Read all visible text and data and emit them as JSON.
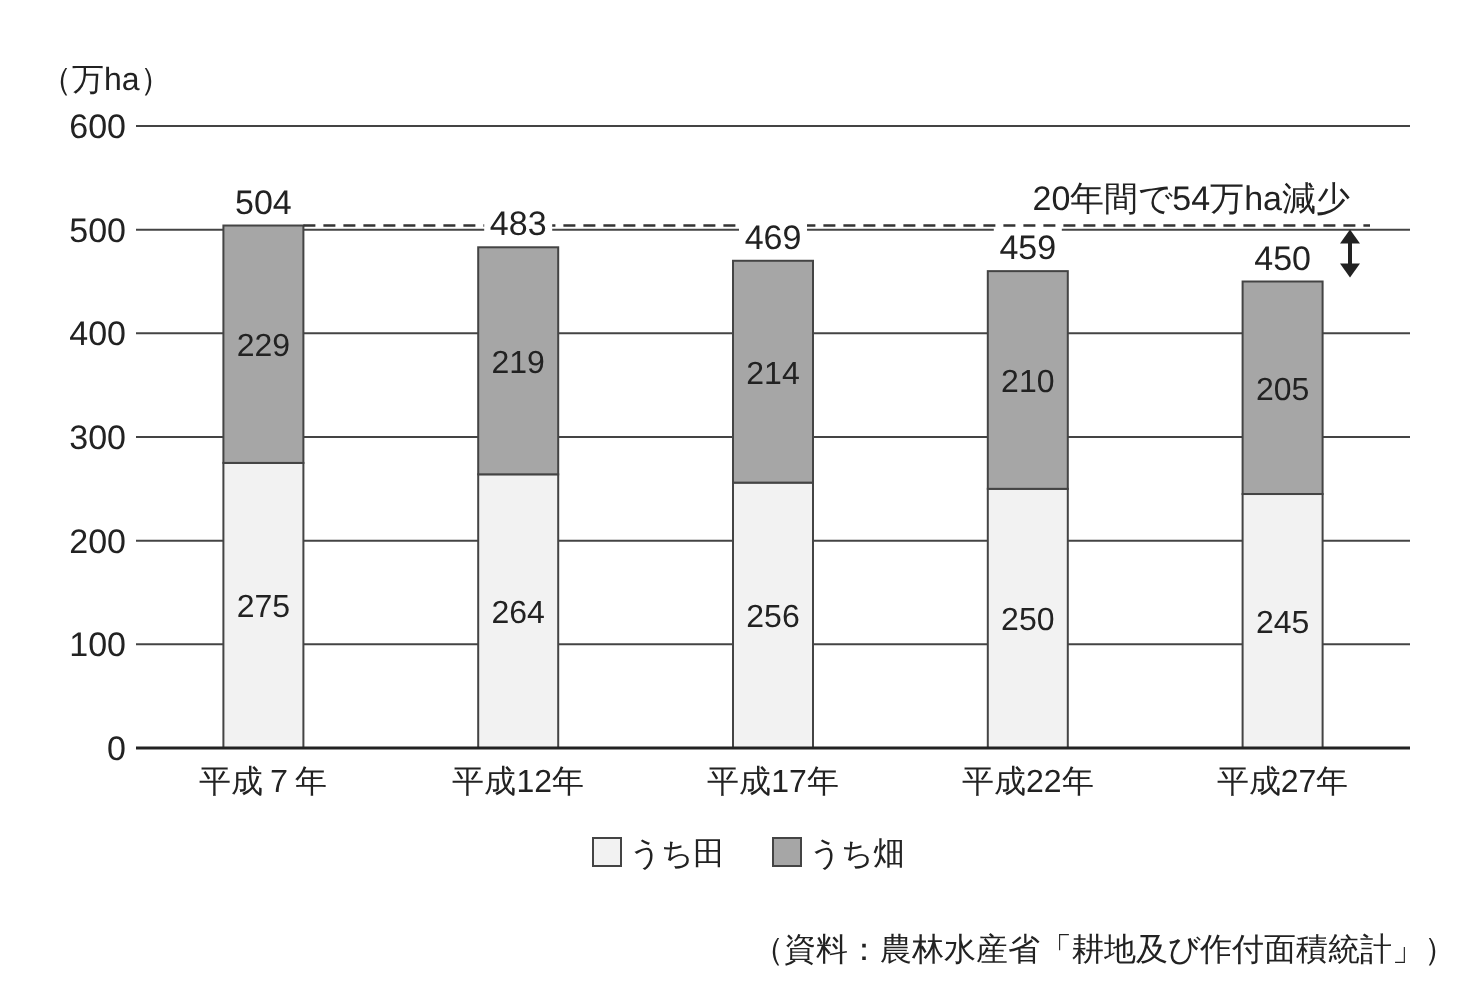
{
  "chart_data": {
    "type": "bar",
    "stacked": true,
    "ylabel": "（万ha）",
    "categories": [
      "平成７年",
      "平成12年",
      "平成17年",
      "平成22年",
      "平成27年"
    ],
    "series": [
      {
        "name": "うち田",
        "color": "#f2f2f2",
        "values": [
          275,
          264,
          256,
          250,
          245
        ]
      },
      {
        "name": "うち畑",
        "color": "#a6a6a6",
        "values": [
          229,
          219,
          214,
          210,
          205
        ]
      }
    ],
    "ylim": [
      0,
      600
    ],
    "yticks": [
      0,
      100,
      200,
      300,
      400,
      500,
      600
    ],
    "grid": "y",
    "legend": "bottom",
    "data_labels": true,
    "totals": [
      "504",
      "483",
      "469",
      "459",
      "450"
    ],
    "ref_lines": [
      {
        "axis": "y",
        "value": 504,
        "label": "20年間で54万ha減少",
        "line_style": "dashed",
        "color": "#333333"
      }
    ],
    "annotations": [
      "（資料：農林水産省「耕地及び作付面積統計」）"
    ]
  }
}
